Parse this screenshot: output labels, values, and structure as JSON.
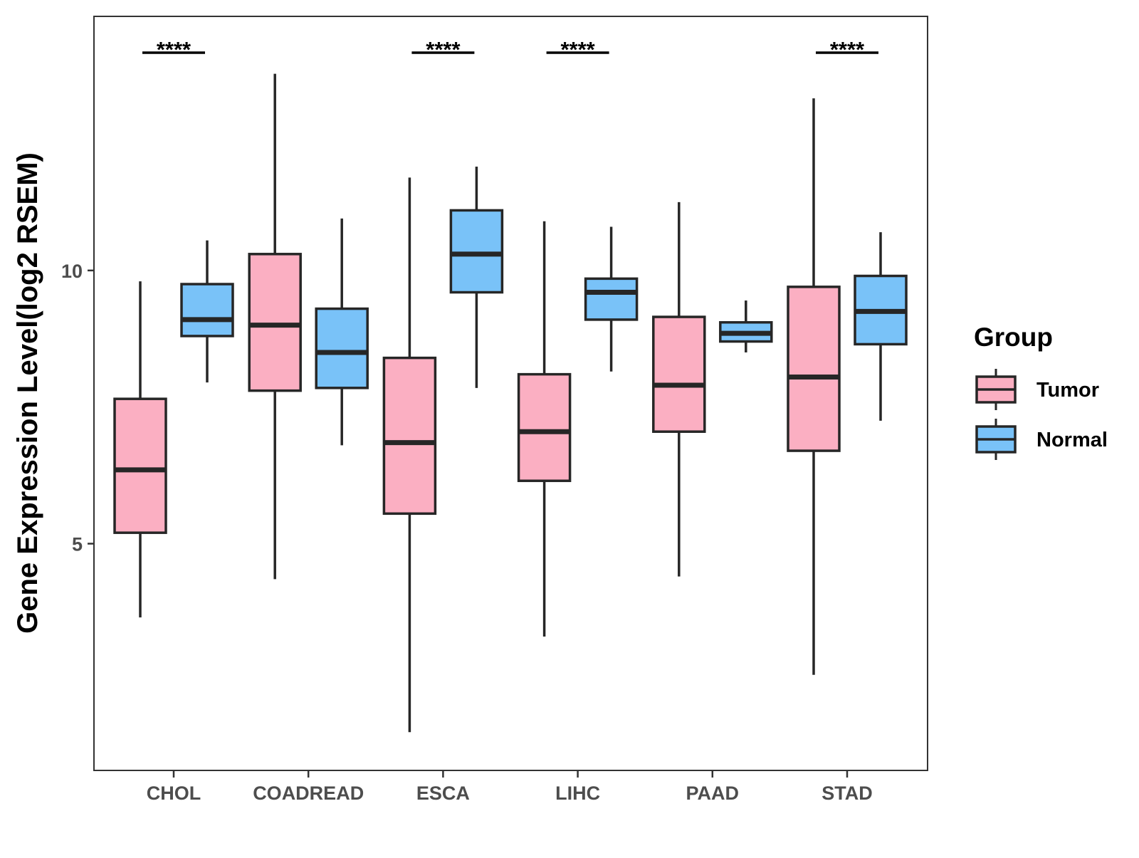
{
  "chart_data": {
    "type": "boxplot",
    "title": "",
    "xlabel": "",
    "ylabel": "Gene Expression Level(log2 RSEM)",
    "ylim": [
      0.85,
      14.65
    ],
    "yticks": [
      5,
      10
    ],
    "grid": false,
    "categories": [
      "CHOL",
      "COADREAD",
      "ESCA",
      "LIHC",
      "PAAD",
      "STAD"
    ],
    "legend": {
      "title": "Group",
      "position": "right",
      "entries": [
        {
          "name": "Tumor",
          "color": "#fbafc2"
        },
        {
          "name": "Normal",
          "color": "#79c2f8"
        }
      ]
    },
    "series": [
      {
        "name": "Tumor",
        "color": "#fbafc2",
        "boxes": [
          {
            "category": "CHOL",
            "whisker_low": 3.65,
            "q1": 5.2,
            "median": 6.35,
            "q3": 7.65,
            "whisker_high": 9.8
          },
          {
            "category": "COADREAD",
            "whisker_low": 4.35,
            "q1": 7.8,
            "median": 9.0,
            "q3": 10.3,
            "whisker_high": 13.6
          },
          {
            "category": "ESCA",
            "whisker_low": 1.55,
            "q1": 5.55,
            "median": 6.85,
            "q3": 8.4,
            "whisker_high": 11.7
          },
          {
            "category": "LIHC",
            "whisker_low": 3.3,
            "q1": 6.15,
            "median": 7.05,
            "q3": 8.1,
            "whisker_high": 10.9
          },
          {
            "category": "PAAD",
            "whisker_low": 4.4,
            "q1": 7.05,
            "median": 7.9,
            "q3": 9.15,
            "whisker_high": 11.25
          },
          {
            "category": "STAD",
            "whisker_low": 2.6,
            "q1": 6.7,
            "median": 8.05,
            "q3": 9.7,
            "whisker_high": 13.15
          }
        ]
      },
      {
        "name": "Normal",
        "color": "#79c2f8",
        "boxes": [
          {
            "category": "CHOL",
            "whisker_low": 7.95,
            "q1": 8.8,
            "median": 9.1,
            "q3": 9.75,
            "whisker_high": 10.55
          },
          {
            "category": "COADREAD",
            "whisker_low": 6.8,
            "q1": 7.85,
            "median": 8.5,
            "q3": 9.3,
            "whisker_high": 10.95
          },
          {
            "category": "ESCA",
            "whisker_low": 7.85,
            "q1": 9.6,
            "median": 10.3,
            "q3": 11.1,
            "whisker_high": 11.9
          },
          {
            "category": "LIHC",
            "whisker_low": 8.15,
            "q1": 9.1,
            "median": 9.6,
            "q3": 9.85,
            "whisker_high": 10.8
          },
          {
            "category": "PAAD",
            "whisker_low": 8.5,
            "q1": 8.7,
            "median": 8.85,
            "q3": 9.05,
            "whisker_high": 9.45
          },
          {
            "category": "STAD",
            "whisker_low": 7.25,
            "q1": 8.65,
            "median": 9.25,
            "q3": 9.9,
            "whisker_high": 10.7
          }
        ]
      }
    ],
    "annotations": [
      {
        "category": "CHOL",
        "text": "****"
      },
      {
        "category": "ESCA",
        "text": "****"
      },
      {
        "category": "LIHC",
        "text": "****"
      },
      {
        "category": "STAD",
        "text": "****"
      }
    ]
  }
}
